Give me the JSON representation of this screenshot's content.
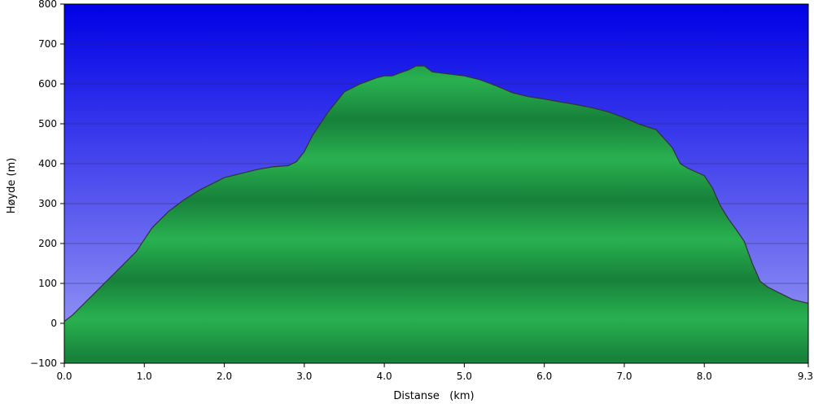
{
  "chart_data": {
    "type": "area",
    "xlabel": "Distanse   (km)",
    "ylabel": "Høyde (m)",
    "xlim": [
      0,
      9.3
    ],
    "ylim": [
      -100,
      800
    ],
    "x_ticks": [
      0.0,
      1.0,
      2.0,
      3.0,
      4.0,
      5.0,
      6.0,
      7.0,
      8.0,
      9.3
    ],
    "x_tick_labels": [
      "0.0",
      "1.0",
      "2.0",
      "3.0",
      "4.0",
      "5.0",
      "6.0",
      "7.0",
      "8.0",
      "9.3"
    ],
    "y_ticks": [
      -100,
      0,
      100,
      200,
      300,
      400,
      500,
      600,
      700,
      800
    ],
    "y_tick_labels": [
      "−100",
      "0",
      "100",
      "200",
      "300",
      "400",
      "500",
      "600",
      "700",
      "800"
    ],
    "grid": true,
    "colors": {
      "sky_top": "#0000e6",
      "sky_bottom": "#9f9ff5",
      "fill_light": "#29b150",
      "fill_dark": "#17813a",
      "outline": "#333333"
    },
    "series": [
      {
        "x": [
          0.0,
          0.1,
          0.3,
          0.5,
          0.7,
          0.9,
          1.0,
          1.1,
          1.3,
          1.5,
          1.7,
          1.9,
          2.0,
          2.2,
          2.4,
          2.6,
          2.8,
          2.9,
          3.0,
          3.1,
          3.3,
          3.5,
          3.7,
          3.9,
          4.0,
          4.1,
          4.2,
          4.3,
          4.4,
          4.5,
          4.6,
          4.8,
          5.0,
          5.2,
          5.4,
          5.6,
          5.8,
          6.0,
          6.2,
          6.4,
          6.6,
          6.8,
          7.0,
          7.2,
          7.4,
          7.6,
          7.7,
          7.8,
          8.0,
          8.1,
          8.2,
          8.3,
          8.4,
          8.5,
          8.6,
          8.7,
          8.8,
          8.9,
          9.0,
          9.1,
          9.2,
          9.3
        ],
        "y": [
          5,
          20,
          60,
          100,
          140,
          180,
          210,
          240,
          280,
          310,
          335,
          355,
          365,
          375,
          385,
          392,
          395,
          405,
          430,
          470,
          530,
          580,
          600,
          615,
          620,
          620,
          628,
          635,
          645,
          645,
          630,
          625,
          620,
          610,
          595,
          578,
          568,
          562,
          555,
          548,
          540,
          530,
          515,
          498,
          485,
          440,
          400,
          388,
          370,
          340,
          295,
          262,
          235,
          205,
          150,
          105,
          90,
          80,
          70,
          60,
          55,
          50
        ]
      }
    ]
  }
}
